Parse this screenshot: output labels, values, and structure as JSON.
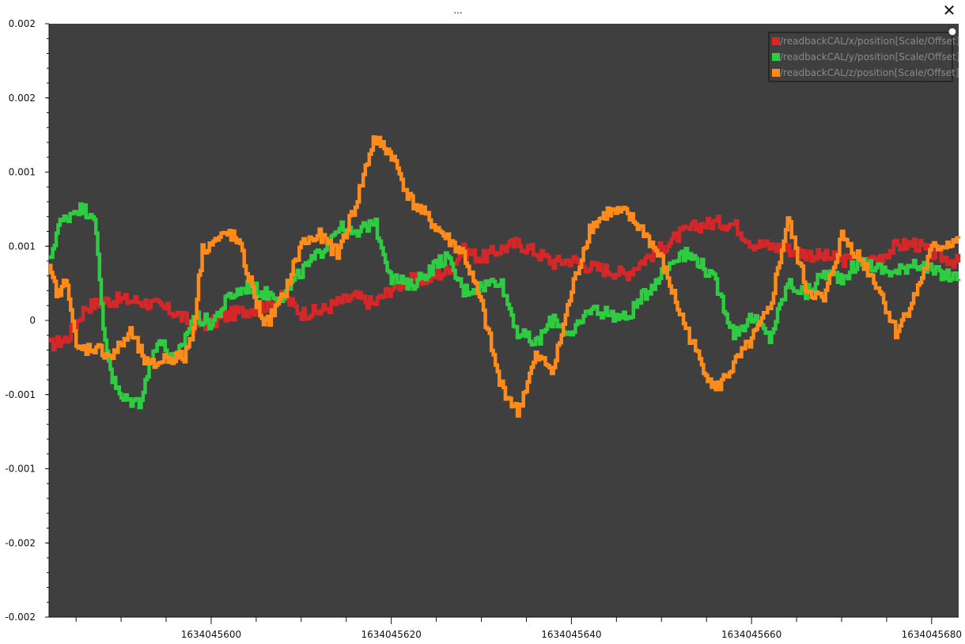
{
  "window": {
    "title": "...",
    "close_icon": "close-icon"
  },
  "chart_data": {
    "type": "line",
    "title": "",
    "xlabel": "",
    "ylabel": "",
    "xlim": [
      1634045582,
      1634045683
    ],
    "ylim": [
      -0.002,
      0.002
    ],
    "x_ticks": [
      1634045600,
      1634045620,
      1634045640,
      1634045660,
      1634045680
    ],
    "x_tick_labels": [
      "1634045600",
      "1634045620",
      "1634045640",
      "1634045660",
      "1634045680"
    ],
    "y_ticks": [
      0.002,
      0.0015,
      0.001,
      0.0005,
      0,
      -0.0005,
      -0.001,
      -0.0015,
      -0.002
    ],
    "y_tick_labels": [
      "0.002",
      "0.002",
      "0.001",
      "0.001",
      "0",
      "-0.001",
      "-0.001",
      "-0.002",
      "-0.002"
    ],
    "background": "#3f3f3f",
    "grid": false,
    "legend_position": "top-right",
    "series": [
      {
        "name": "/readbackCAL/x/position[Scale/Offset]",
        "color": "#d62728",
        "x": [
          1634045582,
          1634045584,
          1634045586,
          1634045588,
          1634045590,
          1634045592,
          1634045594,
          1634045596,
          1634045598,
          1634045600,
          1634045602,
          1634045604,
          1634045606,
          1634045608,
          1634045610,
          1634045612,
          1634045614,
          1634045616,
          1634045618,
          1634045620,
          1634045622,
          1634045624,
          1634045626,
          1634045628,
          1634045630,
          1634045632,
          1634045634,
          1634045636,
          1634045638,
          1634045640,
          1634045642,
          1634045644,
          1634045646,
          1634045648,
          1634045650,
          1634045652,
          1634045654,
          1634045656,
          1634045658,
          1634045660,
          1634045662,
          1634045664,
          1634045666,
          1634045668,
          1634045670,
          1634045672,
          1634045674,
          1634045676,
          1634045678,
          1634045680,
          1634045683
        ],
        "y": [
          -0.00017,
          -0.00012,
          9e-05,
          0.00013,
          0.00014,
          0.00013,
          0.0001,
          5e-05,
          -3e-05,
          -2e-05,
          4e-05,
          7e-05,
          0.0001,
          0.00016,
          5e-05,
          6e-05,
          0.00012,
          0.00016,
          0.00011,
          0.00022,
          0.00027,
          0.00028,
          0.00033,
          0.00047,
          0.00042,
          0.00048,
          0.00052,
          0.00046,
          0.00039,
          0.00041,
          0.00036,
          0.00034,
          0.00031,
          0.00041,
          0.00049,
          0.00058,
          0.00064,
          0.00066,
          0.00065,
          0.00052,
          0.0005,
          0.00048,
          0.00045,
          0.00043,
          0.00041,
          0.00038,
          0.00042,
          0.0005,
          0.00052,
          0.00045,
          0.00039
        ]
      },
      {
        "name": "/readbackCAL/y/position[Scale/Offset]",
        "color": "#2ecc40",
        "x": [
          1634045582,
          1634045583,
          1634045585,
          1634045587,
          1634045588,
          1634045589,
          1634045590,
          1634045592,
          1634045594,
          1634045596,
          1634045598,
          1634045600,
          1634045602,
          1634045604,
          1634045606,
          1634045608,
          1634045610,
          1634045612,
          1634045614,
          1634045616,
          1634045618,
          1634045620,
          1634045622,
          1634045624,
          1634045626,
          1634045628,
          1634045630,
          1634045632,
          1634045634,
          1634045636,
          1634045638,
          1634045640,
          1634045642,
          1634045644,
          1634045646,
          1634045648,
          1634045650,
          1634045652,
          1634045654,
          1634045656,
          1634045658,
          1634045660,
          1634045662,
          1634045664,
          1634045666,
          1634045668,
          1634045670,
          1634045672,
          1634045674,
          1634045676,
          1634045678,
          1634045680,
          1634045683
        ],
        "y": [
          0.00039,
          0.00064,
          0.00076,
          0.00072,
          -5e-05,
          -0.00039,
          -0.00053,
          -0.00055,
          -0.00012,
          -0.00028,
          3e-05,
          -2e-05,
          0.00016,
          0.00023,
          0.00018,
          0.00017,
          0.00033,
          0.00045,
          0.00063,
          0.00057,
          0.00068,
          0.00029,
          0.00023,
          0.00033,
          0.00043,
          0.0002,
          0.00023,
          0.00028,
          -8e-05,
          -0.00016,
          2e-05,
          -0.00011,
          8e-05,
          5e-05,
          1e-05,
          0.00017,
          0.00032,
          0.00046,
          0.00041,
          0.00025,
          -9e-05,
          2e-05,
          -0.00012,
          0.00025,
          0.00018,
          0.00032,
          0.00029,
          0.0004,
          0.00035,
          0.00032,
          0.0004,
          0.00033,
          0.00028
        ]
      },
      {
        "name": "/readbackCAL/z/position[Scale/Offset]",
        "color": "#ff8c1a",
        "x": [
          1634045582,
          1634045583,
          1634045584,
          1634045585,
          1634045587,
          1634045589,
          1634045591,
          1634045593,
          1634045595,
          1634045597,
          1634045598,
          1634045599,
          1634045600,
          1634045602,
          1634045603,
          1634045605,
          1634045606,
          1634045608,
          1634045610,
          1634045612,
          1634045614,
          1634045616,
          1634045618,
          1634045619,
          1634045620,
          1634045622,
          1634045624,
          1634045626,
          1634045628,
          1634045630,
          1634045632,
          1634045634,
          1634045636,
          1634045638,
          1634045640,
          1634045642,
          1634045644,
          1634045646,
          1634045648,
          1634045650,
          1634045652,
          1634045654,
          1634045656,
          1634045658,
          1634045660,
          1634045662,
          1634045664,
          1634045666,
          1634045668,
          1634045670,
          1634045672,
          1634045674,
          1634045676,
          1634045678,
          1634045680,
          1634045683
        ],
        "y": [
          0.00033,
          0.00017,
          0.00028,
          -0.0002,
          -0.00018,
          -0.00024,
          -8e-05,
          -0.00032,
          -0.00025,
          -0.00025,
          -5e-05,
          0.00048,
          0.00052,
          0.00059,
          0.00052,
          0.00012,
          -3e-05,
          0.00016,
          0.00052,
          0.00057,
          0.00045,
          0.00078,
          0.00122,
          0.00118,
          0.00112,
          0.00082,
          0.00069,
          0.00056,
          0.00045,
          0.0001,
          -0.00042,
          -0.00062,
          -0.00025,
          -0.00032,
          0.0002,
          0.00062,
          0.00073,
          0.00072,
          0.0006,
          0.0004,
          5e-05,
          -0.00024,
          -0.00047,
          -0.0003,
          -0.00013,
          8e-05,
          0.00068,
          0.00022,
          0.00013,
          0.00057,
          0.00042,
          0.00023,
          -8e-05,
          0.00015,
          0.00048,
          0.00055
        ]
      }
    ]
  }
}
